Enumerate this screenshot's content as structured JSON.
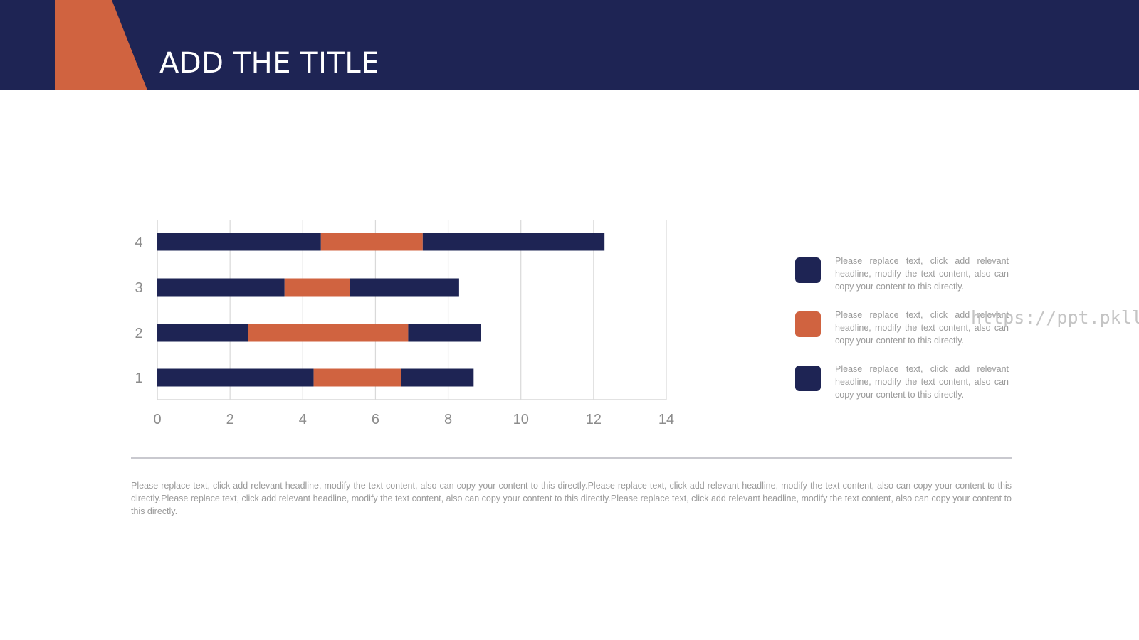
{
  "slide": {
    "title": "ADD THE TITLE",
    "colors": {
      "navy": "#1e2454",
      "orange": "#d06340",
      "grid": "#d9d9d9",
      "axis_text": "#8c8c8c"
    }
  },
  "chart_data": {
    "type": "bar",
    "orientation": "horizontal",
    "stacked": true,
    "categories": [
      "1",
      "2",
      "3",
      "4"
    ],
    "series": [
      {
        "values": [
          4.3,
          2.5,
          3.5,
          4.5
        ],
        "color": "#1e2454"
      },
      {
        "values": [
          2.4,
          4.4,
          1.8,
          2.8
        ],
        "color": "#d06340"
      },
      {
        "values": [
          2.0,
          2.0,
          3.0,
          5.0
        ],
        "color": "#1e2454"
      }
    ],
    "x_ticks": [
      "0",
      "2",
      "4",
      "6",
      "8",
      "10",
      "12",
      "14"
    ],
    "xlim": [
      0,
      14
    ],
    "grid": "vertical",
    "legend": "none"
  },
  "legend": {
    "items": [
      {
        "color": "#1e2454",
        "text": "Please replace text, click add relevant headline, modify the text content, also can copy your content to this directly."
      },
      {
        "color": "#d06340",
        "text": "Please replace text, click add relevant headline, modify the text content, also can copy your content to this directly."
      },
      {
        "color": "#1e2454",
        "text": "Please replace text, click add relevant headline, modify the text content, also can copy your content to this directly."
      }
    ]
  },
  "body_text": "Please replace text, click add relevant headline, modify the text content, also can copy your content to this directly.Please replace text, click add relevant headline, modify the text content, also can copy your content to this directly.Please replace text, click add relevant headline, modify the text content, also can copy your content to this directly.Please replace text, click add relevant headline, modify the text content, also can copy your content to this directly.",
  "watermark": "https://ppt.pkll.de"
}
